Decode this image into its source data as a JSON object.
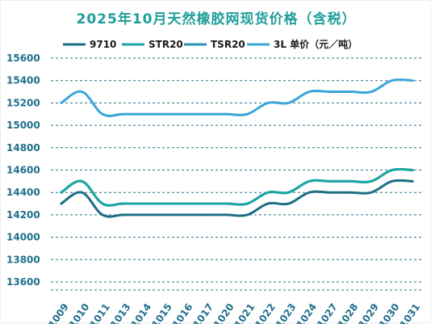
{
  "chart_data": {
    "type": "line",
    "title": "2025年10月天然橡胶网现货价格（含税）",
    "categories": [
      "1009",
      "1010",
      "1011",
      "1013",
      "1014",
      "1015",
      "1016",
      "1017",
      "1020",
      "1021",
      "1022",
      "1023",
      "1024",
      "1027",
      "1028",
      "1029",
      "1030",
      "1031"
    ],
    "series": [
      {
        "name": "9710",
        "color": "#1d6f84",
        "values": [
          14300,
          14400,
          14200,
          14200,
          14200,
          14200,
          14200,
          14200,
          14200,
          14200,
          14300,
          14300,
          14400,
          14400,
          14400,
          14400,
          14500,
          14500
        ]
      },
      {
        "name": "STR20",
        "color": "#1ba6a3",
        "values": [
          14400,
          14500,
          14300,
          14300,
          14300,
          14300,
          14300,
          14300,
          14300,
          14300,
          14400,
          14400,
          14500,
          14500,
          14500,
          14500,
          14600,
          14600
        ]
      },
      {
        "name": "TSR20",
        "color": "#2a8fb0",
        "values": [
          14400,
          14500,
          14300,
          14300,
          14300,
          14300,
          14300,
          14300,
          14300,
          14300,
          14400,
          14400,
          14500,
          14500,
          14500,
          14500,
          14600,
          14600
        ]
      },
      {
        "name": "3L 单价（元／吨）",
        "color": "#3aa6d8",
        "values": [
          15200,
          15300,
          15100,
          15100,
          15100,
          15100,
          15100,
          15100,
          15100,
          15100,
          15200,
          15200,
          15300,
          15300,
          15300,
          15300,
          15400,
          15400
        ]
      }
    ],
    "yticks": [
      13600,
      13800,
      14000,
      14200,
      14400,
      14600,
      14800,
      15000,
      15200,
      15400,
      15600
    ],
    "ylim": [
      13600,
      15600
    ],
    "grid": true,
    "legend_position": "top"
  }
}
